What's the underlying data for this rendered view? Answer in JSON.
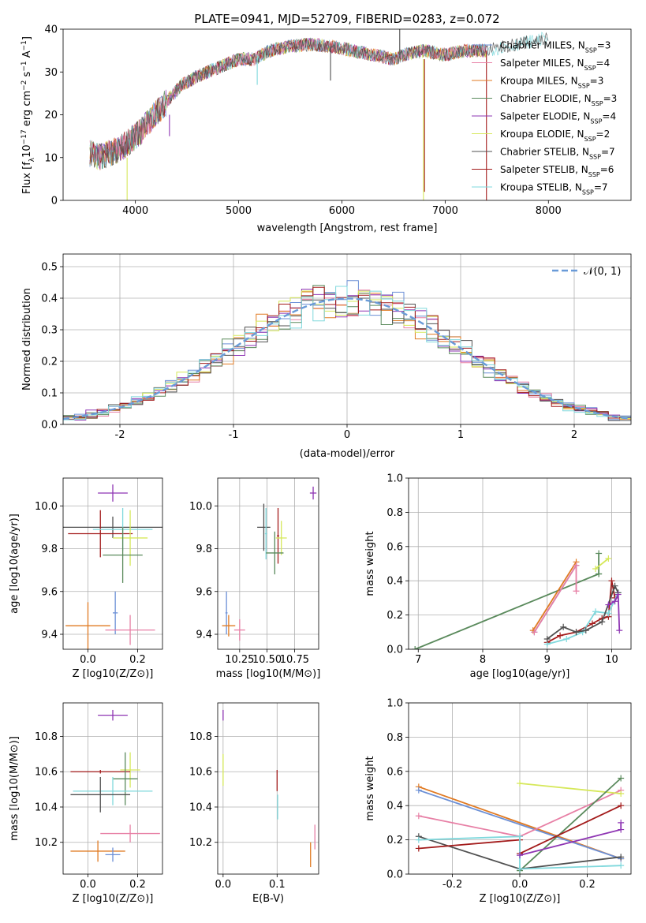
{
  "figure": {
    "title": "PLATE=0941, MJD=52709, FIBERID=0283, z=0.072"
  },
  "colors": {
    "Chabrier MILES": "#6b8fd6",
    "Salpeter MILES": "#e77fa5",
    "Kroupa MILES": "#e07a22",
    "Chabrier ELODIE": "#5a8a5c",
    "Salpeter ELODIE": "#8e35b3",
    "Kroupa ELODIE": "#d6e85a",
    "Chabrier STELIB": "#505050",
    "Salpeter STELIB": "#a31b1b",
    "Kroupa STELIB": "#7fd8dc"
  },
  "chart_data": [
    {
      "id": "spectrum",
      "type": "line",
      "xlabel": "wavelength [Angstrom, rest frame]",
      "ylabel": "Flux [f_λ10^-17 erg cm^-2 s^-1 A^-1]",
      "xlim": [
        3300,
        8800
      ],
      "ylim": [
        0,
        40
      ],
      "xticks": [
        4000,
        5000,
        6000,
        7000,
        8000
      ],
      "yticks": [
        0,
        10,
        20,
        30,
        40
      ],
      "grid": false,
      "legend": "top-right",
      "legend_entries": [
        {
          "name": "Chabrier MILES",
          "nssp": "3"
        },
        {
          "name": "Salpeter MILES",
          "nssp": "4"
        },
        {
          "name": "Kroupa MILES",
          "nssp": "3"
        },
        {
          "name": "Chabrier ELODIE",
          "nssp": "3"
        },
        {
          "name": "Salpeter ELODIE",
          "nssp": "4"
        },
        {
          "name": "Kroupa ELODIE",
          "nssp": "2"
        },
        {
          "name": "Chabrier STELIB",
          "nssp": "7"
        },
        {
          "name": "Salpeter STELIB",
          "nssp": "6"
        },
        {
          "name": "Kroupa STELIB",
          "nssp": "7"
        }
      ],
      "continuum": {
        "x": [
          3560,
          3650,
          3750,
          3850,
          3950,
          4050,
          4150,
          4300,
          4450,
          4600,
          4800,
          5000,
          5150,
          5300,
          5500,
          5700,
          5900,
          6100,
          6300,
          6500,
          6600,
          6800,
          7000,
          7200,
          7400,
          7600,
          7800,
          8000
        ],
        "y": [
          11,
          10,
          11,
          12,
          14,
          16,
          19,
          23,
          27,
          29,
          31,
          33,
          33,
          35,
          36,
          36.5,
          36,
          35,
          34,
          33,
          34,
          35,
          34,
          35,
          35,
          36,
          37,
          38
        ]
      },
      "spikes": [
        {
          "series": "Kroupa ELODIE",
          "x": 3920,
          "y0": 10,
          "y1": 0
        },
        {
          "series": "Salpeter ELODIE",
          "x": 4330,
          "y0": 20,
          "y1": 15
        },
        {
          "series": "Kroupa ELODIE",
          "x": 6790,
          "y0": 33,
          "y1": 0
        },
        {
          "series": "Salpeter STELIB",
          "x": 6800,
          "y0": 33,
          "y1": 2
        },
        {
          "series": "Salpeter STELIB",
          "x": 7400,
          "y0": 35,
          "y1": 0
        },
        {
          "series": "Kroupa STELIB",
          "x": 5180,
          "y0": 34,
          "y1": 27
        },
        {
          "series": "Chabrier STELIB",
          "x": 5890,
          "y0": 36,
          "y1": 28
        },
        {
          "series": "Chabrier STELIB",
          "x": 6560,
          "y0": 34,
          "y1": 40
        }
      ]
    },
    {
      "id": "residuals",
      "type": "line",
      "xlabel": "(data-model)/error",
      "ylabel": "Normed distribution",
      "xlim": [
        -2.5,
        2.5
      ],
      "ylim": [
        0,
        0.54
      ],
      "xticks": [
        -2,
        -1,
        0,
        1,
        2
      ],
      "yticks": [
        0.0,
        0.1,
        0.2,
        0.3,
        0.4,
        0.5
      ],
      "grid": true,
      "legend": "top-right",
      "legend_entries": [
        "𝒩(0, 1)"
      ],
      "normal": {
        "mean": 0,
        "sigma": 1,
        "color": "#6a9bd8"
      },
      "bin_width": 0.1,
      "bin_start": -2.5
    },
    {
      "id": "age-Z",
      "type": "scatter",
      "xlabel": "Z [log10(Z/Z⊙)]",
      "ylabel": "age [log10(age/yr)]",
      "xlim": [
        -0.1,
        0.3
      ],
      "ylim": [
        9.33,
        10.13
      ],
      "xticks": [
        0.0,
        0.2
      ],
      "yticks": [
        9.4,
        9.6,
        9.8,
        10.0
      ],
      "grid": true,
      "points": [
        {
          "series": "Salpeter ELODIE",
          "x": 0.1,
          "xerr": 0.06,
          "y": 10.06,
          "yerr": 0.04
        },
        {
          "series": "Chabrier STELIB",
          "x": 0.1,
          "xerr": 0.2,
          "y": 9.9,
          "yerr": 0.05
        },
        {
          "series": "Salpeter STELIB",
          "x": 0.05,
          "xerr": 0.13,
          "y": 9.87,
          "yerr": 0.11
        },
        {
          "series": "Kroupa STELIB",
          "x": 0.14,
          "xerr": 0.12,
          "y": 9.89,
          "yerr": 0.1
        },
        {
          "series": "Kroupa ELODIE",
          "x": 0.17,
          "xerr": 0.07,
          "y": 9.85,
          "yerr": 0.13
        },
        {
          "series": "Chabrier ELODIE",
          "x": 0.14,
          "xerr": 0.08,
          "y": 9.77,
          "yerr": 0.13
        },
        {
          "series": "Kroupa MILES",
          "x": 0.0,
          "xerr": 0.09,
          "y": 9.44,
          "yerr": 0.11
        },
        {
          "series": "Chabrier MILES",
          "x": 0.11,
          "xerr": 0.01,
          "y": 9.5,
          "yerr": 0.1
        },
        {
          "series": "Salpeter MILES",
          "x": 0.17,
          "xerr": 0.1,
          "y": 9.42,
          "yerr": 0.07
        }
      ]
    },
    {
      "id": "age-mass",
      "type": "scatter",
      "xlabel": "mass [log10(M/M⊙)]",
      "ylabel": "",
      "xlim": [
        10.05,
        10.97
      ],
      "ylim": [
        9.33,
        10.13
      ],
      "xticks": [
        10.25,
        10.5,
        10.75
      ],
      "yticks": [
        9.4,
        9.6,
        9.8,
        10.0
      ],
      "grid": true,
      "points": [
        {
          "series": "Salpeter ELODIE",
          "x": 10.92,
          "xerr": 0.03,
          "y": 10.06,
          "yerr": 0.03
        },
        {
          "series": "Chabrier STELIB",
          "x": 10.47,
          "xerr": 0.06,
          "y": 9.9,
          "yerr": 0.11
        },
        {
          "series": "Kroupa STELIB",
          "x": 10.49,
          "xerr": 0.01,
          "y": 9.87,
          "yerr": 0.12
        },
        {
          "series": "Salpeter STELIB",
          "x": 10.6,
          "xerr": 0.01,
          "y": 9.86,
          "yerr": 0.13
        },
        {
          "series": "Kroupa ELODIE",
          "x": 10.63,
          "xerr": 0.05,
          "y": 9.85,
          "yerr": 0.08
        },
        {
          "series": "Chabrier ELODIE",
          "x": 10.57,
          "xerr": 0.08,
          "y": 9.78,
          "yerr": 0.1
        },
        {
          "series": "Chabrier MILES",
          "x": 10.13,
          "xerr": 0.01,
          "y": 9.5,
          "yerr": 0.1
        },
        {
          "series": "Kroupa MILES",
          "x": 10.15,
          "xerr": 0.06,
          "y": 9.44,
          "yerr": 0.05
        },
        {
          "series": "Salpeter MILES",
          "x": 10.25,
          "xerr": 0.05,
          "y": 9.42,
          "yerr": 0.05
        }
      ]
    },
    {
      "id": "mw-age",
      "type": "line",
      "xlabel": "age [log10(age/yr)]",
      "ylabel": "mass weight",
      "xlim": [
        6.85,
        10.3
      ],
      "ylim": [
        0,
        1.0
      ],
      "xticks": [
        7,
        8,
        9,
        10
      ],
      "yticks": [
        0.0,
        0.2,
        0.4,
        0.6,
        0.8,
        1.0
      ],
      "grid": true,
      "series": [
        {
          "name": "Chabrier ELODIE",
          "x": [
            6.95,
            9.8
          ],
          "y": [
            0.0,
            0.44
          ]
        },
        {
          "name": "Chabrier ELODIE",
          "x": [
            9.8,
            9.8
          ],
          "y": [
            0.44,
            0.56
          ]
        },
        {
          "name": "Chabrier MILES",
          "x": [
            8.8,
            9.45
          ],
          "y": [
            0.1,
            0.49
          ]
        },
        {
          "name": "Kroupa MILES",
          "x": [
            8.78,
            9.45
          ],
          "y": [
            0.11,
            0.51
          ]
        },
        {
          "name": "Salpeter MILES",
          "x": [
            8.8,
            9.45,
            9.45
          ],
          "y": [
            0.1,
            0.49,
            0.34
          ]
        },
        {
          "name": "Kroupa ELODIE",
          "x": [
            9.75,
            9.95
          ],
          "y": [
            0.47,
            0.53
          ]
        },
        {
          "name": "Salpeter STELIB",
          "x": [
            9.0,
            9.2,
            9.45,
            9.7,
            9.85,
            9.95,
            10.0,
            10.05
          ],
          "y": [
            0.04,
            0.08,
            0.1,
            0.15,
            0.18,
            0.19,
            0.4,
            0.3
          ]
        },
        {
          "name": "Kroupa STELIB",
          "x": [
            9.0,
            9.3,
            9.55,
            9.75,
            9.95,
            10.1
          ],
          "y": [
            0.03,
            0.06,
            0.1,
            0.22,
            0.21,
            0.33
          ]
        },
        {
          "name": "Chabrier STELIB",
          "x": [
            9.0,
            9.25,
            9.45,
            9.6,
            9.85,
            10.05,
            10.1
          ],
          "y": [
            0.06,
            0.13,
            0.1,
            0.11,
            0.16,
            0.37,
            0.33
          ]
        },
        {
          "name": "Salpeter ELODIE",
          "x": [
            9.95,
            10.05,
            10.1,
            10.12
          ],
          "y": [
            0.26,
            0.28,
            0.32,
            0.11
          ]
        }
      ]
    },
    {
      "id": "mass-Z",
      "type": "scatter",
      "xlabel": "Z [log10(Z/Z⊙)]",
      "ylabel": "mass [log10(M/M⊙)]",
      "xlim": [
        -0.1,
        0.3
      ],
      "ylim": [
        10.02,
        10.99
      ],
      "xticks": [
        0.0,
        0.2
      ],
      "yticks": [
        10.2,
        10.4,
        10.6,
        10.8
      ],
      "grid": true,
      "points": [
        {
          "series": "Salpeter ELODIE",
          "x": 0.1,
          "xerr": 0.06,
          "y": 10.92,
          "yerr": 0.03
        },
        {
          "series": "Kroupa ELODIE",
          "x": 0.17,
          "xerr": 0.04,
          "y": 10.61,
          "yerr": 0.1
        },
        {
          "series": "Salpeter STELIB",
          "x": 0.05,
          "xerr": 0.12,
          "y": 10.6,
          "yerr": 0.01
        },
        {
          "series": "Chabrier ELODIE",
          "x": 0.15,
          "xerr": 0.05,
          "y": 10.56,
          "yerr": 0.15
        },
        {
          "series": "Kroupa STELIB",
          "x": 0.1,
          "xerr": 0.16,
          "y": 10.49,
          "yerr": 0.08
        },
        {
          "series": "Chabrier STELIB",
          "x": 0.05,
          "xerr": 0.12,
          "y": 10.47,
          "yerr": 0.1
        },
        {
          "series": "Salpeter MILES",
          "x": 0.17,
          "xerr": 0.12,
          "y": 10.25,
          "yerr": 0.05
        },
        {
          "series": "Kroupa MILES",
          "x": 0.04,
          "xerr": 0.11,
          "y": 10.15,
          "yerr": 0.06
        },
        {
          "series": "Chabrier MILES",
          "x": 0.1,
          "xerr": 0.03,
          "y": 10.13,
          "yerr": 0.04
        }
      ]
    },
    {
      "id": "mass-ebv",
      "type": "scatter",
      "xlabel": "E(B-V)",
      "ylabel": "",
      "xlim": [
        -0.01,
        0.177
      ],
      "ylim": [
        10.02,
        10.99
      ],
      "xticks": [
        0.0,
        0.1
      ],
      "yticks": [
        10.2,
        10.4,
        10.6,
        10.8
      ],
      "grid": true,
      "points": [
        {
          "series": "Salpeter ELODIE",
          "x": 0.0,
          "y": 10.92,
          "yerr": 0.03
        },
        {
          "series": "Kroupa ELODIE",
          "x": 0.0,
          "y": 10.61,
          "yerr": 0.09
        },
        {
          "series": "Salpeter STELIB",
          "x": 0.1,
          "y": 10.55,
          "yerr": 0.06
        },
        {
          "series": "Kroupa STELIB",
          "x": 0.101,
          "y": 10.4,
          "yerr": 0.07
        },
        {
          "series": "Salpeter MILES",
          "x": 0.17,
          "y": 10.23,
          "yerr": 0.07
        },
        {
          "series": "Kroupa MILES",
          "x": 0.162,
          "y": 10.13,
          "yerr": 0.07
        }
      ]
    },
    {
      "id": "mw-Z",
      "type": "line",
      "xlabel": "Z [log10(Z/Z⊙)]",
      "ylabel": "mass weight",
      "xlim": [
        -0.33,
        0.33
      ],
      "ylim": [
        0,
        1.0
      ],
      "xticks": [
        -0.2,
        0.0,
        0.2
      ],
      "yticks": [
        0.0,
        0.2,
        0.4,
        0.6,
        0.8,
        1.0
      ],
      "grid": true,
      "series": [
        {
          "name": "Kroupa MILES",
          "x": [
            -0.3,
            0.3
          ],
          "y": [
            0.51,
            0.09
          ]
        },
        {
          "name": "Chabrier MILES",
          "x": [
            -0.3,
            0.3
          ],
          "y": [
            0.49,
            0.09
          ]
        },
        {
          "name": "Salpeter MILES",
          "x": [
            -0.3,
            0.0,
            0.3
          ],
          "y": [
            0.34,
            0.22,
            0.49
          ]
        },
        {
          "name": "Kroupa ELODIE",
          "x": [
            0.0,
            0.3
          ],
          "y": [
            0.53,
            0.47
          ]
        },
        {
          "name": "Chabrier ELODIE",
          "x": [
            0.0,
            0.3
          ],
          "y": [
            0.02,
            0.56
          ]
        },
        {
          "name": "Chabrier STELIB",
          "x": [
            -0.3,
            0.0,
            0.3
          ],
          "y": [
            0.22,
            0.03,
            0.1
          ]
        },
        {
          "name": "Salpeter STELIB",
          "x": [
            -0.3,
            0.0,
            0.0,
            0.3
          ],
          "y": [
            0.15,
            0.2,
            0.12,
            0.4
          ]
        },
        {
          "name": "Kroupa STELIB",
          "x": [
            -0.3,
            0.0,
            0.0,
            0.3
          ],
          "y": [
            0.2,
            0.22,
            0.03,
            0.05
          ]
        },
        {
          "name": "Salpeter ELODIE",
          "x": [
            0.0,
            0.3,
            0.3
          ],
          "y": [
            0.11,
            0.26,
            0.3
          ]
        }
      ]
    }
  ]
}
